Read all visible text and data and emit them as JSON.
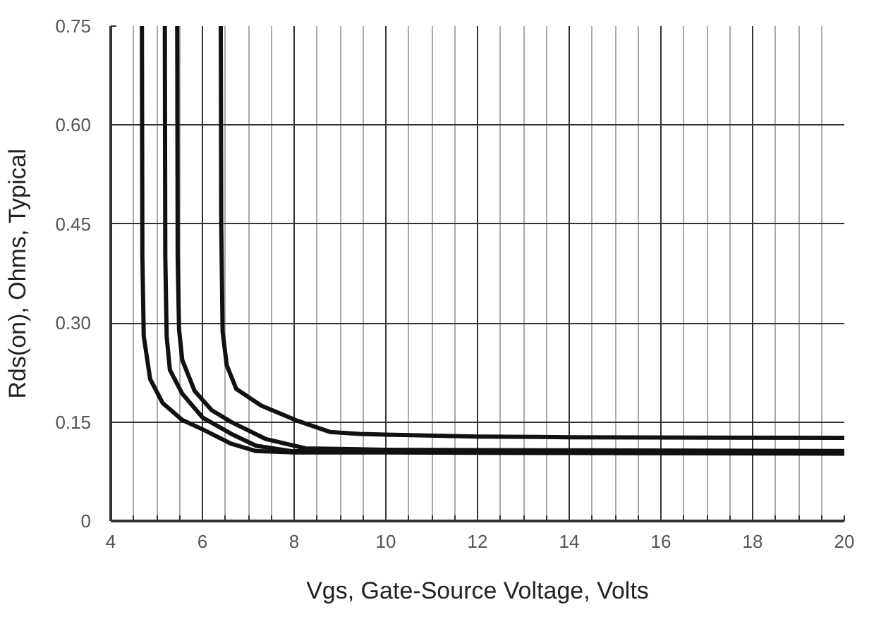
{
  "chart_data": {
    "type": "line",
    "xlabel": "Vgs, Gate-Source Voltage, Volts",
    "ylabel": "Rds(on), Ohms, Typical",
    "xlim": [
      4,
      20
    ],
    "ylim": [
      0,
      0.75
    ],
    "xticks": [
      4,
      {
        "value": 4.5,
        "label": null
      },
      6,
      {
        "value": 5,
        "label": null
      },
      {
        "value": 5.5,
        "label": null
      },
      {
        "value": 6.5,
        "label": null
      },
      {
        "value": 7,
        "label": null
      },
      {
        "value": 7.5,
        "label": null
      },
      8,
      {
        "value": 8.5,
        "label": null
      },
      {
        "value": 9,
        "label": null
      },
      {
        "value": 9.5,
        "label": null
      },
      10,
      {
        "value": 10.5,
        "label": null
      },
      {
        "value": 11,
        "label": null
      },
      {
        "value": 11.5,
        "label": null
      },
      12,
      {
        "value": 12.5,
        "label": null
      },
      {
        "value": 13,
        "label": null
      },
      {
        "value": 13.5,
        "label": null
      },
      14,
      {
        "value": 14.5,
        "label": null
      },
      {
        "value": 15,
        "label": null
      },
      {
        "value": 15.5,
        "label": null
      },
      16,
      {
        "value": 16.5,
        "label": null
      },
      {
        "value": 17,
        "label": null
      },
      {
        "value": 17.5,
        "label": null
      },
      18,
      {
        "value": 18.5,
        "label": null
      },
      {
        "value": 19,
        "label": null
      },
      {
        "value": 19.5,
        "label": null
      },
      20
    ],
    "yticks": [
      0,
      {
        "value": 0.15,
        "label": "0.15"
      },
      {
        "value": 0.3,
        "label": "0.30"
      },
      {
        "value": 0.45,
        "label": "0.45"
      },
      {
        "value": 0.6,
        "label": "0.60"
      },
      {
        "value": 0.75,
        "label": "0.75"
      }
    ],
    "grid": true,
    "marker": "none",
    "line_style": "solid",
    "series": [
      {
        "color": "#111111",
        "x": [
          4.68,
          4.69,
          4.72,
          4.86,
          5.13,
          5.56,
          6,
          6.63,
          7.17,
          8,
          10,
          14,
          20
        ],
        "values": [
          0.75,
          0.4,
          0.28,
          0.215,
          0.179,
          0.153,
          0.139,
          0.117,
          0.106,
          0.104,
          0.104,
          0.103,
          0.102
        ]
      },
      {
        "color": "#111111",
        "x": [
          5.18,
          5.19,
          5.22,
          5.29,
          5.56,
          6,
          6.63,
          7.17,
          7.92,
          10,
          14,
          20
        ],
        "values": [
          0.75,
          0.4,
          0.28,
          0.229,
          0.193,
          0.157,
          0.132,
          0.114,
          0.106,
          0.105,
          0.104,
          0.104
        ]
      },
      {
        "color": "#111111",
        "x": [
          5.45,
          5.46,
          5.49,
          5.56,
          5.83,
          6.2,
          6.63,
          7.39,
          8.25,
          10,
          14,
          20
        ],
        "values": [
          0.75,
          0.4,
          0.29,
          0.244,
          0.197,
          0.168,
          0.15,
          0.124,
          0.11,
          0.108,
          0.107,
          0.106
        ]
      },
      {
        "color": "#111111",
        "x": [
          6.4,
          6.41,
          6.44,
          6.53,
          6.74,
          7.28,
          8.03,
          8.78,
          9.43,
          10,
          12,
          14,
          20
        ],
        "values": [
          0.75,
          0.45,
          0.287,
          0.236,
          0.2,
          0.175,
          0.153,
          0.135,
          0.132,
          0.131,
          0.128,
          0.127,
          0.126
        ]
      }
    ]
  }
}
